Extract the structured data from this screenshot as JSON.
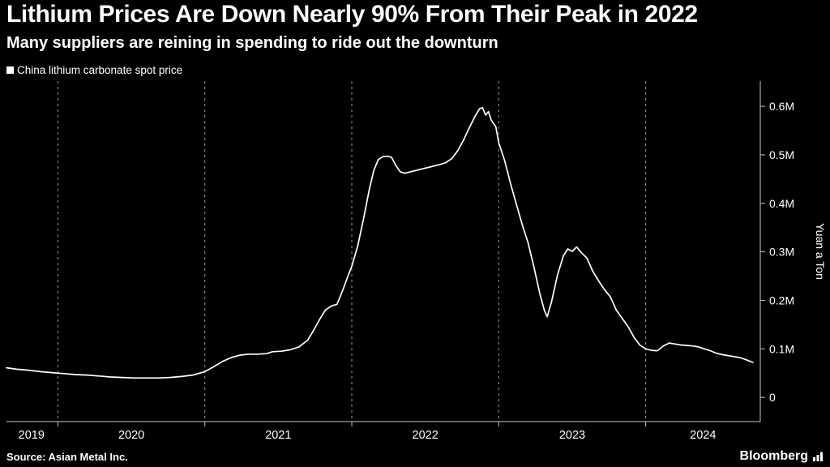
{
  "header": {
    "title": "Lithium Prices Are Down Nearly 90% From Their Peak in 2022",
    "subtitle": "Many suppliers are reining in spending to ride out the downturn"
  },
  "legend": {
    "label": "China lithium carbonate spot price",
    "swatch_color": "#ffffff"
  },
  "footer": {
    "source": "Source: Asian Metal Inc.",
    "brand": "Bloomberg"
  },
  "colors": {
    "background": "#000000",
    "line": "#ffffff",
    "gridline": "#9a9a9a",
    "axis": "#c8c8c8",
    "text": "#ffffff"
  },
  "chart_data": {
    "type": "line",
    "title": "Lithium Prices Are Down Nearly 90% From Their Peak in 2022",
    "subtitle": "Many suppliers are reining in spending to ride out the downturn",
    "xlabel": "",
    "ylabel": "Yuan a Ton",
    "units": "million yuan per ton",
    "grid": "vertical-dashed",
    "legend_position": "top-left",
    "xlim": [
      2019.65,
      2024.78
    ],
    "ylim": [
      -0.05,
      0.652
    ],
    "x_gridlines": [
      2020,
      2021,
      2022,
      2023,
      2024
    ],
    "xticks": [
      {
        "pos": 2019.82,
        "label": "2019"
      },
      {
        "pos": 2020.5,
        "label": "2020"
      },
      {
        "pos": 2021.5,
        "label": "2021"
      },
      {
        "pos": 2022.5,
        "label": "2022"
      },
      {
        "pos": 2023.5,
        "label": "2023"
      },
      {
        "pos": 2024.39,
        "label": "2024"
      }
    ],
    "yticks": [
      {
        "value": 0.0,
        "label": "0"
      },
      {
        "value": 0.1,
        "label": "0.1M"
      },
      {
        "value": 0.2,
        "label": "0.2M"
      },
      {
        "value": 0.3,
        "label": "0.3M"
      },
      {
        "value": 0.4,
        "label": "0.4M"
      },
      {
        "value": 0.5,
        "label": "0.5M"
      },
      {
        "value": 0.6,
        "label": "0.6M"
      }
    ],
    "series": [
      {
        "name": "China lithium carbonate spot price",
        "color": "#ffffff",
        "points": [
          [
            2019.65,
            0.061
          ],
          [
            2019.72,
            0.058
          ],
          [
            2019.8,
            0.056
          ],
          [
            2019.88,
            0.053
          ],
          [
            2019.96,
            0.051
          ],
          [
            2020.04,
            0.049
          ],
          [
            2020.12,
            0.047
          ],
          [
            2020.2,
            0.046
          ],
          [
            2020.28,
            0.044
          ],
          [
            2020.36,
            0.042
          ],
          [
            2020.44,
            0.041
          ],
          [
            2020.52,
            0.04
          ],
          [
            2020.6,
            0.04
          ],
          [
            2020.68,
            0.04
          ],
          [
            2020.76,
            0.041
          ],
          [
            2020.84,
            0.043
          ],
          [
            2020.92,
            0.046
          ],
          [
            2021.0,
            0.053
          ],
          [
            2021.06,
            0.063
          ],
          [
            2021.12,
            0.074
          ],
          [
            2021.18,
            0.082
          ],
          [
            2021.24,
            0.087
          ],
          [
            2021.3,
            0.089
          ],
          [
            2021.36,
            0.089
          ],
          [
            2021.42,
            0.09
          ],
          [
            2021.46,
            0.094
          ],
          [
            2021.52,
            0.095
          ],
          [
            2021.58,
            0.098
          ],
          [
            2021.64,
            0.104
          ],
          [
            2021.7,
            0.118
          ],
          [
            2021.74,
            0.138
          ],
          [
            2021.78,
            0.16
          ],
          [
            2021.82,
            0.18
          ],
          [
            2021.86,
            0.188
          ],
          [
            2021.9,
            0.192
          ],
          [
            2021.94,
            0.222
          ],
          [
            2021.98,
            0.255
          ],
          [
            2022.0,
            0.27
          ],
          [
            2022.04,
            0.312
          ],
          [
            2022.08,
            0.368
          ],
          [
            2022.12,
            0.43
          ],
          [
            2022.15,
            0.468
          ],
          [
            2022.18,
            0.49
          ],
          [
            2022.21,
            0.496
          ],
          [
            2022.24,
            0.497
          ],
          [
            2022.27,
            0.495
          ],
          [
            2022.3,
            0.478
          ],
          [
            2022.33,
            0.465
          ],
          [
            2022.36,
            0.462
          ],
          [
            2022.4,
            0.465
          ],
          [
            2022.44,
            0.468
          ],
          [
            2022.48,
            0.471
          ],
          [
            2022.52,
            0.474
          ],
          [
            2022.56,
            0.477
          ],
          [
            2022.6,
            0.48
          ],
          [
            2022.64,
            0.484
          ],
          [
            2022.68,
            0.492
          ],
          [
            2022.72,
            0.508
          ],
          [
            2022.76,
            0.53
          ],
          [
            2022.8,
            0.556
          ],
          [
            2022.84,
            0.58
          ],
          [
            2022.87,
            0.595
          ],
          [
            2022.89,
            0.597
          ],
          [
            2022.91,
            0.582
          ],
          [
            2022.93,
            0.589
          ],
          [
            2022.95,
            0.571
          ],
          [
            2022.98,
            0.558
          ],
          [
            2023.0,
            0.525
          ],
          [
            2023.04,
            0.488
          ],
          [
            2023.08,
            0.441
          ],
          [
            2023.12,
            0.398
          ],
          [
            2023.16,
            0.356
          ],
          [
            2023.2,
            0.318
          ],
          [
            2023.24,
            0.268
          ],
          [
            2023.28,
            0.213
          ],
          [
            2023.31,
            0.18
          ],
          [
            2023.33,
            0.166
          ],
          [
            2023.36,
            0.198
          ],
          [
            2023.4,
            0.252
          ],
          [
            2023.44,
            0.292
          ],
          [
            2023.47,
            0.306
          ],
          [
            2023.5,
            0.301
          ],
          [
            2023.53,
            0.31
          ],
          [
            2023.56,
            0.299
          ],
          [
            2023.6,
            0.287
          ],
          [
            2023.64,
            0.26
          ],
          [
            2023.68,
            0.24
          ],
          [
            2023.72,
            0.222
          ],
          [
            2023.76,
            0.207
          ],
          [
            2023.8,
            0.18
          ],
          [
            2023.84,
            0.163
          ],
          [
            2023.88,
            0.146
          ],
          [
            2023.92,
            0.124
          ],
          [
            2023.96,
            0.108
          ],
          [
            2024.0,
            0.1
          ],
          [
            2024.04,
            0.097
          ],
          [
            2024.08,
            0.096
          ],
          [
            2024.12,
            0.106
          ],
          [
            2024.16,
            0.112
          ],
          [
            2024.2,
            0.11
          ],
          [
            2024.24,
            0.108
          ],
          [
            2024.28,
            0.107
          ],
          [
            2024.32,
            0.106
          ],
          [
            2024.36,
            0.104
          ],
          [
            2024.4,
            0.1
          ],
          [
            2024.44,
            0.096
          ],
          [
            2024.48,
            0.091
          ],
          [
            2024.52,
            0.088
          ],
          [
            2024.56,
            0.086
          ],
          [
            2024.6,
            0.084
          ],
          [
            2024.64,
            0.082
          ],
          [
            2024.68,
            0.078
          ],
          [
            2024.73,
            0.072
          ]
        ]
      }
    ]
  }
}
